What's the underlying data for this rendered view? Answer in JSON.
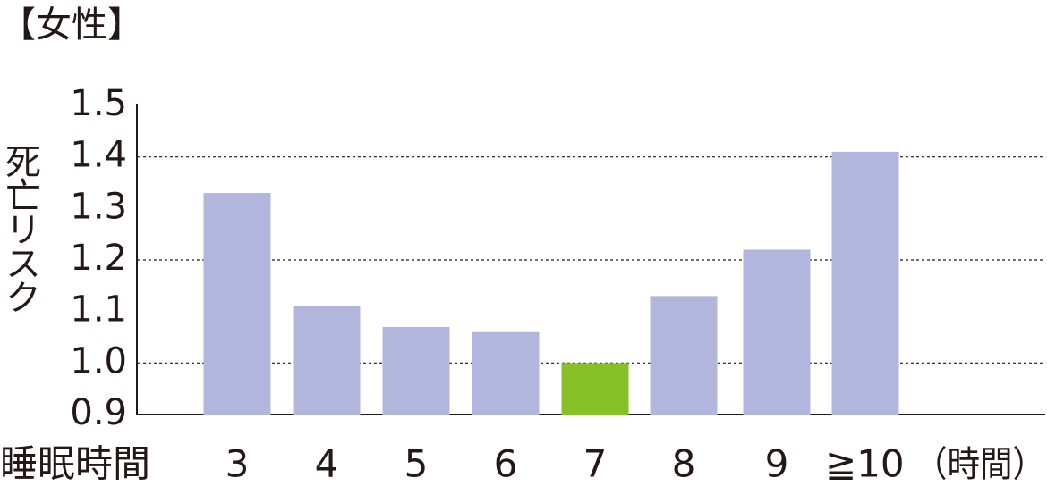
{
  "chart_data": {
    "type": "bar",
    "title": "【女性】",
    "y_label": "死亡リスク",
    "x_label": "睡眠時間",
    "categories": [
      "3",
      "4",
      "5",
      "6",
      "7",
      "8",
      "9",
      "≧10"
    ],
    "x_unit": "（時間）",
    "values": [
      1.33,
      1.11,
      1.07,
      1.06,
      1.0,
      1.13,
      1.22,
      1.41
    ],
    "colors": [
      "#b3b6dc",
      "#b3b6dc",
      "#b3b6dc",
      "#b3b6dc",
      "#86c024",
      "#b3b6dc",
      "#b3b6dc",
      "#b3b6dc"
    ],
    "ylim": [
      0.9,
      1.5
    ],
    "yticks": [
      1.5,
      1.4,
      1.3,
      1.2,
      1.1,
      {
        "value": 1,
        "label": "1.0"
      },
      0.9
    ],
    "gridlines": [
      1.4,
      1.2,
      1
    ]
  }
}
